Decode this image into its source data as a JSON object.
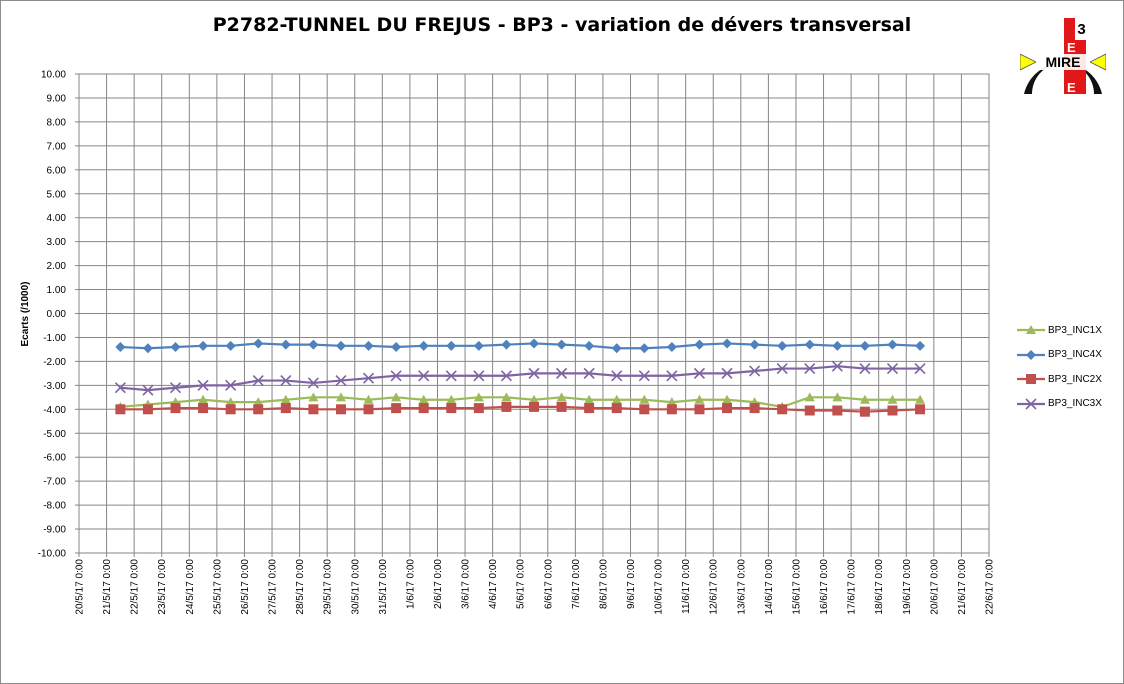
{
  "chart_data": {
    "type": "line",
    "title": "P2782-TUNNEL DU FREJUS - BP3 - variation de dévers transversal",
    "ylabel": "Ecarts (/1000)",
    "xlabel": "",
    "ylim": [
      -10,
      10
    ],
    "y_ticks": [
      "10.00",
      "9.00",
      "8.00",
      "7.00",
      "6.00",
      "5.00",
      "4.00",
      "3.00",
      "2.00",
      "1.00",
      "0.00",
      "-1.00",
      "-2.00",
      "-3.00",
      "-4.00",
      "-5.00",
      "-6.00",
      "-7.00",
      "-8.00",
      "-9.00",
      "-10.00"
    ],
    "x_ticks": [
      "20/5/17 0:00",
      "21/5/17 0:00",
      "22/5/17 0:00",
      "23/5/17 0:00",
      "24/5/17 0:00",
      "25/5/17 0:00",
      "26/5/17 0:00",
      "27/5/17 0:00",
      "28/5/17 0:00",
      "29/5/17 0:00",
      "30/5/17 0:00",
      "31/5/17 0:00",
      "1/6/17 0:00",
      "2/6/17 0:00",
      "3/6/17 0:00",
      "4/6/17 0:00",
      "5/6/17 0:00",
      "6/6/17 0:00",
      "7/6/17 0:00",
      "8/6/17 0:00",
      "9/6/17 0:00",
      "10/6/17 0:00",
      "11/6/17 0:00",
      "12/6/17 0:00",
      "13/6/17 0:00",
      "14/6/17 0:00",
      "15/6/17 0:00",
      "16/6/17 0:00",
      "17/6/17 0:00",
      "18/6/17 0:00",
      "19/6/17 0:00",
      "20/6/17 0:00",
      "21/6/17 0:00",
      "22/6/17 0:00"
    ],
    "grid": true,
    "legend_position": "right",
    "x_days": [
      "21/5/17",
      "22/5/17",
      "23/5/17",
      "24/5/17",
      "25/5/17",
      "26/5/17",
      "27/5/17",
      "28/5/17",
      "29/5/17",
      "30/5/17",
      "31/5/17",
      "1/6/17",
      "2/6/17",
      "3/6/17",
      "4/6/17",
      "5/6/17",
      "6/6/17",
      "7/6/17",
      "8/6/17",
      "9/6/17",
      "10/6/17",
      "11/6/17",
      "12/6/17",
      "13/6/17",
      "14/6/17",
      "15/6/17",
      "16/6/17",
      "17/6/17",
      "18/6/17",
      "19/6/17"
    ],
    "series": [
      {
        "name": "BP3_INC1X",
        "color": "#9BBB59",
        "marker": "triangle",
        "values": [
          -3.9,
          -3.8,
          -3.7,
          -3.6,
          -3.7,
          -3.7,
          -3.6,
          -3.5,
          -3.5,
          -3.6,
          -3.5,
          -3.6,
          -3.6,
          -3.5,
          -3.5,
          -3.6,
          -3.5,
          -3.6,
          -3.6,
          -3.6,
          -3.7,
          -3.6,
          -3.6,
          -3.7,
          -3.9,
          -3.5,
          -3.5,
          -3.6,
          -3.6,
          -3.6
        ]
      },
      {
        "name": "BP3_INC4X",
        "color": "#4F81BD",
        "marker": "diamond",
        "values": [
          -1.4,
          -1.45,
          -1.4,
          -1.35,
          -1.35,
          -1.25,
          -1.3,
          -1.3,
          -1.35,
          -1.35,
          -1.4,
          -1.35,
          -1.35,
          -1.35,
          -1.3,
          -1.25,
          -1.3,
          -1.35,
          -1.45,
          -1.45,
          -1.4,
          -1.3,
          -1.25,
          -1.3,
          -1.35,
          -1.3,
          -1.35,
          -1.35,
          -1.3,
          -1.35
        ]
      },
      {
        "name": "BP3_INC2X",
        "color": "#C0504D",
        "marker": "square",
        "values": [
          -4.0,
          -4.0,
          -3.95,
          -3.95,
          -4.0,
          -4.0,
          -3.95,
          -4.0,
          -4.0,
          -4.0,
          -3.95,
          -3.95,
          -3.95,
          -3.95,
          -3.9,
          -3.9,
          -3.9,
          -3.95,
          -3.95,
          -4.0,
          -4.0,
          -4.0,
          -3.95,
          -3.95,
          -4.0,
          -4.05,
          -4.05,
          -4.1,
          -4.05,
          -4.0
        ]
      },
      {
        "name": "BP3_INC3X",
        "color": "#8064A2",
        "marker": "x",
        "values": [
          -3.1,
          -3.2,
          -3.1,
          -3.0,
          -3.0,
          -2.8,
          -2.8,
          -2.9,
          -2.8,
          -2.7,
          -2.6,
          -2.6,
          -2.6,
          -2.6,
          -2.6,
          -2.5,
          -2.5,
          -2.5,
          -2.6,
          -2.6,
          -2.6,
          -2.5,
          -2.5,
          -2.4,
          -2.3,
          -2.3,
          -2.2,
          -2.3,
          -2.3,
          -2.3
        ]
      }
    ]
  },
  "logo": {
    "text": "MIRE",
    "digit": "3",
    "letters": [
      "E",
      "E"
    ]
  }
}
